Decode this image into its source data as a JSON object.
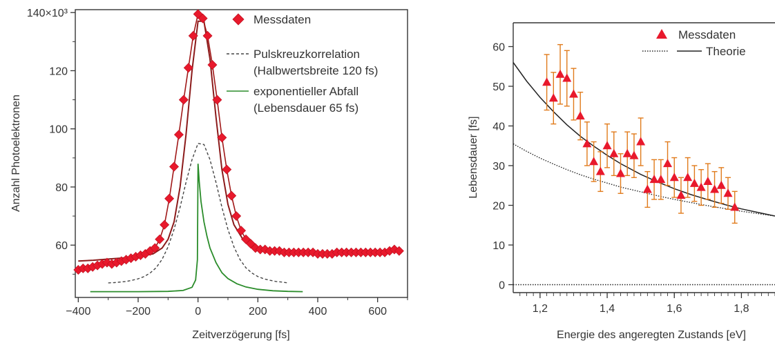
{
  "chart_data": [
    {
      "type": "line",
      "xlabel": "Zeitverzögerung [fs]",
      "ylabel": "Anzahl Photoelektronen",
      "xlim": [
        -410,
        700
      ],
      "ylim": [
        42,
        141
      ],
      "xticks": [
        -400,
        -200,
        0,
        200,
        400,
        600
      ],
      "xtick_labels": [
        "−400",
        "−200",
        "0",
        "200",
        "400",
        "600"
      ],
      "yticks": [
        60,
        80,
        100,
        120,
        140
      ],
      "ytick_labels": [
        "60",
        "80",
        "100",
        "120",
        "140×10³"
      ],
      "grid": false,
      "legend_position": "top-right",
      "legend": {
        "measured": "Messdaten",
        "cross_correlation_line1": "Pulskreuzkorrelation",
        "cross_correlation_line2": "(Halbwertsbreite 120 fs)",
        "exponential_line1": "exponentieller Abfall",
        "exponential_line2": "(Lebensdauer 65 fs)"
      },
      "series": [
        {
          "name": "Messdaten",
          "style": "markers-diamond",
          "color": "#e8192c",
          "x": [
            -400,
            -384,
            -368,
            -352,
            -336,
            -320,
            -304,
            -288,
            -272,
            -256,
            -240,
            -224,
            -208,
            -192,
            -176,
            -160,
            -144,
            -128,
            -112,
            -96,
            -80,
            -64,
            -48,
            -32,
            -16,
            0,
            16,
            32,
            48,
            64,
            80,
            96,
            112,
            128,
            144,
            160,
            176,
            192,
            208,
            224,
            240,
            256,
            272,
            288,
            304,
            320,
            336,
            352,
            368,
            384,
            400,
            416,
            432,
            448,
            464,
            480,
            496,
            512,
            528,
            544,
            560,
            576,
            592,
            608,
            624,
            640,
            656,
            672
          ],
          "y": [
            51.5,
            52,
            52,
            52.5,
            53,
            53.5,
            54,
            53.5,
            54,
            54.5,
            55,
            55.5,
            56,
            56.5,
            57,
            58,
            59,
            62,
            67,
            76,
            87,
            98,
            110,
            121,
            132,
            139.5,
            138,
            132,
            122,
            110,
            97,
            86,
            77,
            70,
            65,
            62,
            60.5,
            59,
            58.5,
            58.5,
            58,
            58,
            58,
            57.5,
            57.5,
            57.5,
            57.5,
            57.5,
            57.5,
            57.5,
            57,
            57,
            57,
            57,
            57.5,
            57.5,
            57.5,
            57.5,
            57.5,
            57.5,
            57.5,
            57.5,
            57.5,
            57.5,
            57.5,
            58,
            58.5,
            58
          ]
        },
        {
          "name": "Pulskreuzkorrelation",
          "style": "dashed",
          "color": "#444444",
          "x": [
            -300,
            -280,
            -260,
            -240,
            -220,
            -200,
            -180,
            -160,
            -140,
            -120,
            -100,
            -80,
            -60,
            -40,
            -20,
            0,
            20,
            40,
            60,
            80,
            100,
            120,
            140,
            160,
            180,
            200,
            220,
            240,
            260,
            280,
            300
          ],
          "y": [
            47,
            47.1,
            47.3,
            47.5,
            47.9,
            48.4,
            49.2,
            50.4,
            52.2,
            55.1,
            59.4,
            65.4,
            73,
            81.6,
            89.4,
            95,
            94.6,
            89.4,
            81.6,
            73,
            65.4,
            59.4,
            55.1,
            52.2,
            50.4,
            49.2,
            48.4,
            47.9,
            47.5,
            47.3,
            47
          ]
        },
        {
          "name": "exponentieller Abfall",
          "style": "solid",
          "color": "#2a8c2a",
          "x": [
            -360,
            -200,
            -100,
            -50,
            -20,
            -8,
            -2,
            0,
            4,
            10,
            20,
            30,
            40,
            60,
            80,
            100,
            130,
            160,
            200,
            250,
            300,
            350
          ],
          "y": [
            44,
            44,
            44.1,
            44.4,
            45.5,
            48,
            55,
            88,
            82,
            75,
            68,
            63,
            59,
            54,
            50.5,
            48.5,
            46.7,
            45.6,
            44.8,
            44.3,
            44.1,
            44
          ]
        },
        {
          "name": "",
          "style": "fit-line",
          "color": "#8b1a1a",
          "x": [
            -400,
            -350,
            -300,
            -250,
            -200,
            -150,
            -120,
            -100,
            -80,
            -60,
            -40,
            -20,
            0,
            20,
            40,
            60,
            80,
            100,
            120,
            150,
            180,
            200,
            250,
            300,
            400,
            500,
            600,
            680
          ],
          "y": [
            54.5,
            54.8,
            55.2,
            55.6,
            56,
            57,
            59,
            62,
            68,
            80,
            98,
            120,
            137,
            137,
            124,
            104,
            86,
            74,
            67,
            62,
            59.5,
            58.6,
            57.8,
            57.4,
            57.2,
            57.3,
            57.5,
            57.8
          ]
        }
      ]
    },
    {
      "type": "scatter",
      "xlabel": "Energie des angeregten Zustands [eV]",
      "ylabel": "Lebensdauer [fs]",
      "xlim": [
        1.12,
        1.9
      ],
      "ylim": [
        -2,
        66
      ],
      "xticks": [
        1.2,
        1.4,
        1.6,
        1.8
      ],
      "xtick_labels": [
        "1,2",
        "1,4",
        "1,6",
        "1,8"
      ],
      "yticks": [
        0,
        10,
        20,
        30,
        40,
        50,
        60
      ],
      "ytick_labels": [
        "0",
        "10",
        "20",
        "30",
        "40",
        "50",
        "60"
      ],
      "grid": false,
      "legend_position": "top-right",
      "legend": {
        "measured": "Messdaten",
        "theory": "Theorie"
      },
      "series": [
        {
          "name": "Messdaten",
          "style": "markers-triangle-errorbars",
          "color": "#e8192c",
          "errorbar_color": "#e07a1a",
          "x": [
            1.22,
            1.24,
            1.26,
            1.28,
            1.3,
            1.32,
            1.34,
            1.36,
            1.38,
            1.4,
            1.42,
            1.44,
            1.46,
            1.48,
            1.5,
            1.52,
            1.54,
            1.56,
            1.58,
            1.6,
            1.62,
            1.64,
            1.66,
            1.68,
            1.7,
            1.72,
            1.74,
            1.76,
            1.78
          ],
          "y": [
            51,
            47,
            53,
            52,
            48,
            42.5,
            35.5,
            31,
            28.5,
            35,
            33,
            28,
            33,
            32.5,
            36,
            24,
            26.5,
            26.5,
            30.5,
            27,
            22.5,
            27,
            25.5,
            24.5,
            26,
            24,
            25,
            23,
            19.5
          ],
          "err": [
            7,
            6.5,
            7.5,
            7,
            6.5,
            6,
            5.5,
            5,
            5,
            5.5,
            5.5,
            5,
            5.5,
            5.5,
            6,
            4.5,
            5,
            5,
            5.5,
            5,
            4.5,
            5,
            4.5,
            4.5,
            4.5,
            4.5,
            4.5,
            4,
            4
          ]
        },
        {
          "name": "Theorie",
          "style": "solid",
          "color": "#222222",
          "x": [
            1.12,
            1.16,
            1.2,
            1.24,
            1.28,
            1.32,
            1.36,
            1.4,
            1.44,
            1.5,
            1.55,
            1.6,
            1.65,
            1.7,
            1.75,
            1.8,
            1.85,
            1.9
          ],
          "y": [
            56,
            51.3,
            47.2,
            43.6,
            40.3,
            37.4,
            34.9,
            32.6,
            30.5,
            27.8,
            25.9,
            24.2,
            22.7,
            21.4,
            20.2,
            19.1,
            18.2,
            17.3
          ]
        },
        {
          "name": "Theorie",
          "style": "dotted",
          "color": "#222222",
          "x": [
            1.12,
            1.16,
            1.2,
            1.24,
            1.28,
            1.32,
            1.36,
            1.4,
            1.44,
            1.5,
            1.55,
            1.6,
            1.65,
            1.7,
            1.75,
            1.8,
            1.85,
            1.9
          ],
          "y": [
            35.5,
            33.6,
            31.9,
            30.4,
            29,
            27.7,
            26.6,
            25.6,
            24.6,
            23.4,
            22.4,
            21.5,
            20.7,
            19.9,
            19.2,
            18.5,
            17.9,
            17.3
          ]
        },
        {
          "name": "",
          "style": "dotted-baseline",
          "color": "#222222",
          "x": [
            1.12,
            1.9
          ],
          "y": [
            0,
            0
          ]
        }
      ]
    }
  ]
}
